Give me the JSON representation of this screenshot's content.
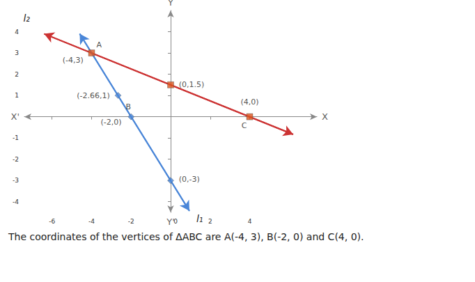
{
  "chart_data": {
    "type": "line",
    "xlim": [
      -7.4,
      7.4
    ],
    "ylim": [
      -4.5,
      5
    ],
    "xticks": [
      -6,
      -4,
      -2,
      0,
      2,
      4
    ],
    "yticks": [
      -4,
      -3,
      -2,
      -1,
      1,
      2,
      3,
      4
    ],
    "grid": false,
    "axis_ends": {
      "x": [
        "X'",
        "X"
      ],
      "y": [
        "Y'",
        "Y"
      ]
    },
    "series": [
      {
        "name": "l₂",
        "color": "#cc3333",
        "x": [
          -6.4,
          6.2
        ],
        "values": [
          3.9,
          -0.83
        ]
      },
      {
        "name": "l₁",
        "color": "#4a86d8",
        "x": [
          -4.6,
          0.95
        ],
        "values": [
          3.9,
          -4.43
        ]
      }
    ],
    "points": [
      {
        "name": "A",
        "label": "(-4,3)",
        "x": -4,
        "y": 3,
        "marker": "square",
        "color": "#d9541e"
      },
      {
        "label": "(-2.66,1)",
        "x": -2.66,
        "y": 1,
        "marker": "diamond",
        "color": "#4a86d8"
      },
      {
        "name": "B",
        "label": "(-2,0)",
        "x": -2,
        "y": 0,
        "marker": "diamond",
        "color": "#4a86d8"
      },
      {
        "label": "(0,1.5)",
        "x": 0,
        "y": 1.5,
        "marker": "square",
        "color": "#d9541e"
      },
      {
        "name": "C",
        "label": "(4,0)",
        "x": 4,
        "y": 0,
        "marker": "square",
        "color": "#d9541e"
      },
      {
        "label": "(0,-3)",
        "x": 0,
        "y": -3,
        "marker": "diamond",
        "color": "#4a86d8"
      }
    ],
    "caption": "The coordinates of the vertices of ∆ABC are A(-4, 3), B(-2, 0) and C(4, 0)."
  }
}
